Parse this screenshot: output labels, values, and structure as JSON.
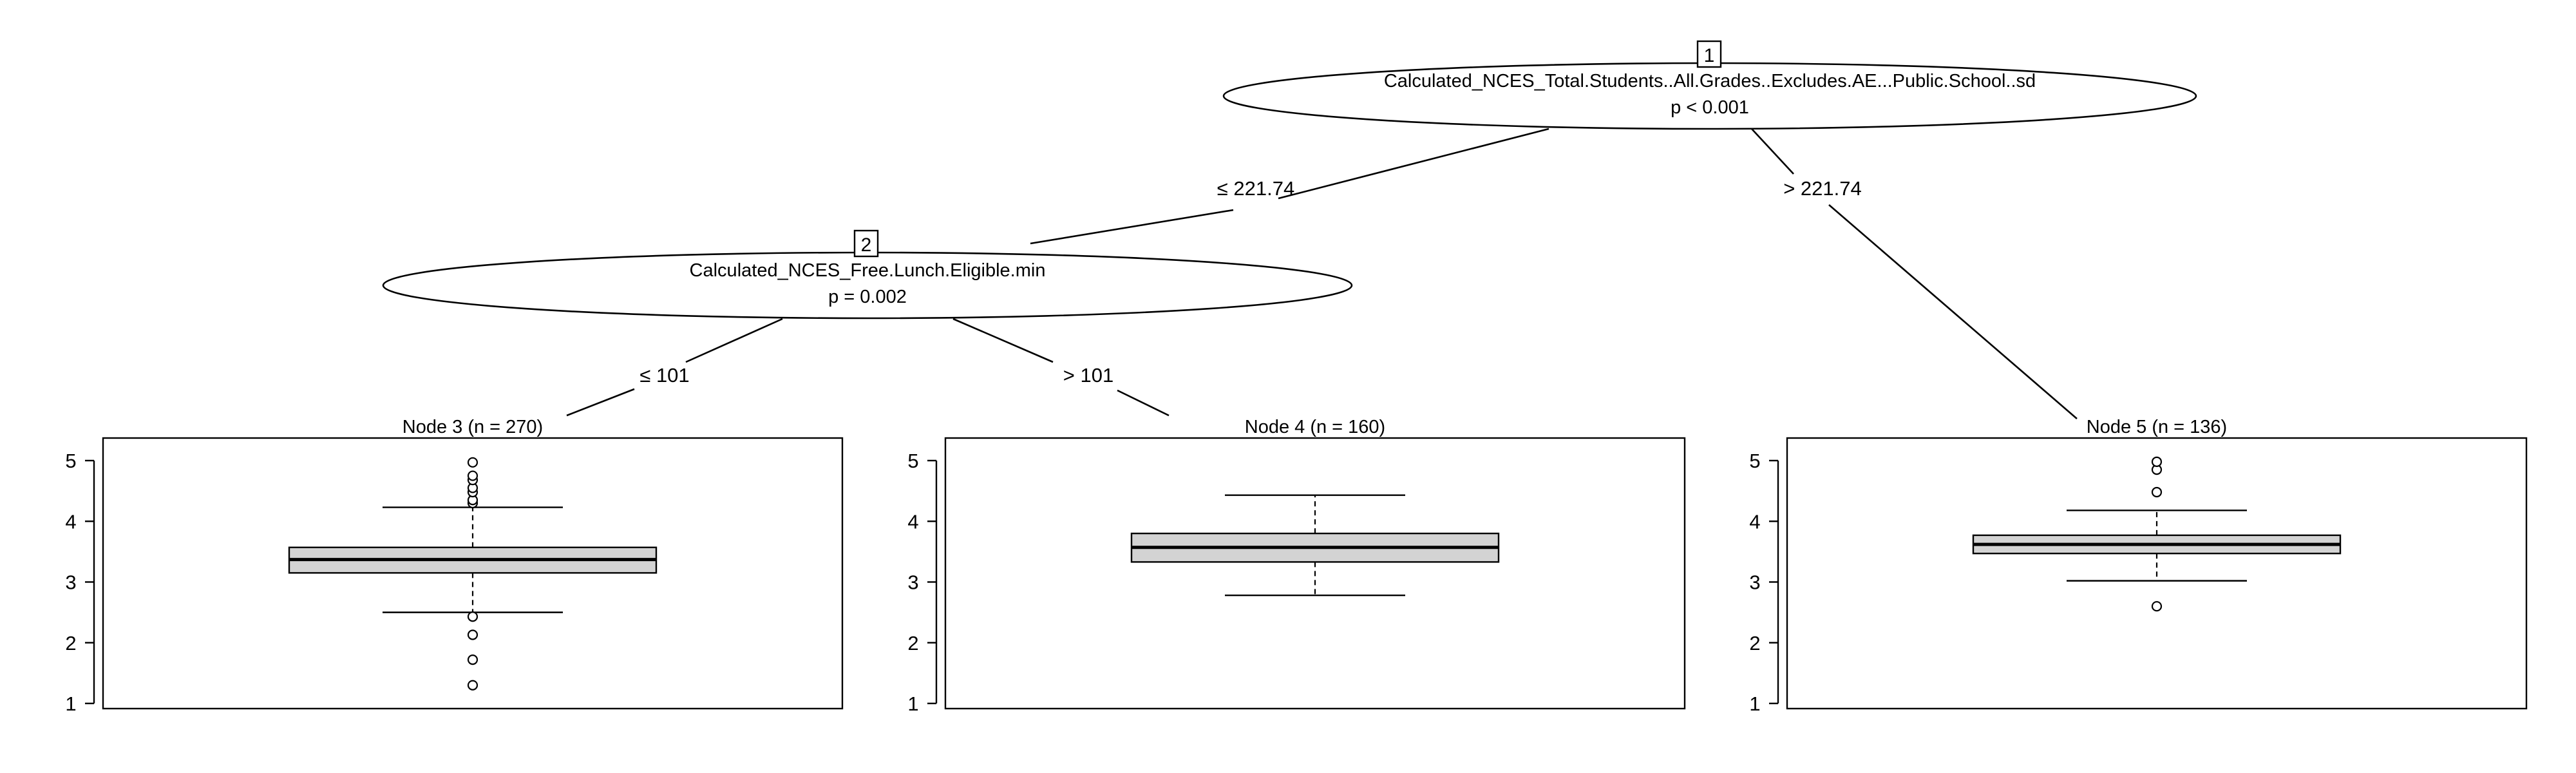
{
  "chart_data": {
    "type": "decision-tree",
    "title": "",
    "inner_nodes": [
      {
        "id": "1",
        "variable": "Calculated_NCES_Total.Students..All.Grades..Excludes.AE...Public.School..sd",
        "p_value": "p < 0.001"
      },
      {
        "id": "2",
        "variable": "Calculated_NCES_Free.Lunch.Eligible.min",
        "p_value": "p = 0.002"
      }
    ],
    "edges": [
      {
        "from": "1",
        "to": "2",
        "label": "≤ 221.74"
      },
      {
        "from": "1",
        "to": "5",
        "label": "> 221.74"
      },
      {
        "from": "2",
        "to": "3",
        "label": "≤ 101"
      },
      {
        "from": "2",
        "to": "4",
        "label": "> 101"
      }
    ],
    "terminal_nodes": [
      {
        "id": "3",
        "header": "Node 3 (n = 270)",
        "n": 270,
        "boxplot": {
          "whisker_low": 2.5,
          "q1": 3.15,
          "median": 3.37,
          "q3": 3.57,
          "whisker_high": 4.23,
          "outliers": [
            4.3,
            4.35,
            4.48,
            4.55,
            4.68,
            4.75,
            4.97,
            2.43,
            2.13,
            1.72,
            1.3
          ]
        }
      },
      {
        "id": "4",
        "header": "Node 4 (n = 160)",
        "n": 160,
        "boxplot": {
          "whisker_low": 2.78,
          "q1": 3.33,
          "median": 3.57,
          "q3": 3.8,
          "whisker_high": 4.43,
          "outliers": []
        }
      },
      {
        "id": "5",
        "header": "Node 5 (n = 136)",
        "n": 136,
        "boxplot": {
          "whisker_low": 3.02,
          "q1": 3.47,
          "median": 3.62,
          "q3": 3.77,
          "whisker_high": 4.18,
          "outliers": [
            4.48,
            4.85,
            4.98,
            2.6
          ]
        }
      }
    ],
    "y_axis": {
      "range": [
        1,
        5
      ],
      "ticks": [
        1,
        2,
        3,
        4,
        5
      ]
    },
    "box_fill": "#d3d3d3",
    "grid": false
  }
}
